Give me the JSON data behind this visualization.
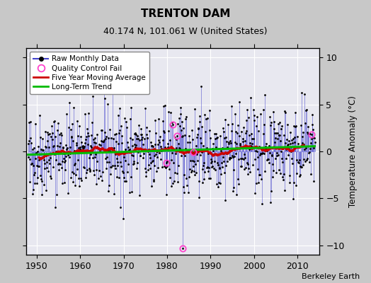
{
  "title": "TRENTON DAM",
  "subtitle": "40.174 N, 101.061 W (United States)",
  "ylabel": "Temperature Anomaly (°C)",
  "credit": "Berkeley Earth",
  "year_start": 1948,
  "year_end": 2014,
  "ylim": [
    -11,
    11
  ],
  "yticks": [
    -10,
    -5,
    0,
    5,
    10
  ],
  "xticks": [
    1950,
    1960,
    1970,
    1980,
    1990,
    2000,
    2010
  ],
  "fig_bg_color": "#c8c8c8",
  "plot_bg_color": "#e8e8f0",
  "raw_line_color": "#4444cc",
  "raw_marker_color": "#000000",
  "moving_avg_color": "#cc0000",
  "trend_color": "#00bb00",
  "qc_fail_color": "#ff44cc",
  "legend_items": [
    "Raw Monthly Data",
    "Quality Control Fail",
    "Five Year Moving Average",
    "Long-Term Trend"
  ],
  "seed": 42
}
